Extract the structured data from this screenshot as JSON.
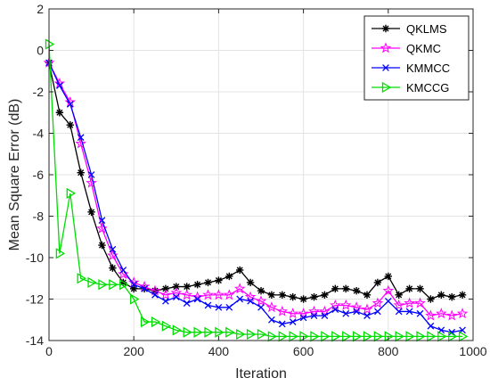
{
  "chart_data": {
    "type": "line",
    "xlabel": "Iteration",
    "ylabel": "Mean Square Error (dB)",
    "xlim": [
      0,
      1000
    ],
    "ylim": [
      -14,
      2
    ],
    "xticks": [
      0,
      200,
      400,
      600,
      800,
      1000
    ],
    "yticks": [
      2,
      0,
      -2,
      -4,
      -6,
      -8,
      -10,
      -12,
      -14
    ],
    "grid": true,
    "legend_position": "top-right",
    "series": [
      {
        "name": "QKLMS",
        "color": "#000000",
        "marker": "asterisk",
        "x": [
          0,
          25,
          50,
          75,
          100,
          125,
          150,
          175,
          200,
          225,
          250,
          275,
          300,
          325,
          350,
          375,
          400,
          425,
          450,
          475,
          500,
          525,
          550,
          575,
          600,
          625,
          650,
          675,
          700,
          725,
          750,
          775,
          800,
          825,
          850,
          875,
          900,
          925,
          950,
          975
        ],
        "y": [
          -0.6,
          -3.0,
          -3.6,
          -5.9,
          -7.8,
          -9.4,
          -10.5,
          -11.2,
          -11.5,
          -11.5,
          -11.6,
          -11.5,
          -11.4,
          -11.4,
          -11.3,
          -11.2,
          -11.1,
          -10.9,
          -10.6,
          -11.2,
          -11.6,
          -11.8,
          -11.8,
          -11.9,
          -12.0,
          -11.9,
          -11.8,
          -11.5,
          -11.5,
          -11.6,
          -11.8,
          -11.2,
          -10.9,
          -11.8,
          -11.5,
          -11.5,
          -12.0,
          -11.8,
          -11.9,
          -11.8
        ]
      },
      {
        "name": "QKMC",
        "color": "#ff00ff",
        "marker": "pentagram",
        "x": [
          0,
          25,
          50,
          75,
          100,
          125,
          150,
          175,
          200,
          225,
          250,
          275,
          300,
          325,
          350,
          375,
          400,
          425,
          450,
          475,
          500,
          525,
          550,
          575,
          600,
          625,
          650,
          675,
          700,
          725,
          750,
          775,
          800,
          825,
          850,
          875,
          900,
          925,
          950,
          975
        ],
        "y": [
          -0.6,
          -1.6,
          -2.5,
          -4.5,
          -6.4,
          -8.6,
          -9.9,
          -10.8,
          -11.2,
          -11.4,
          -11.6,
          -11.8,
          -11.7,
          -11.8,
          -11.9,
          -11.8,
          -11.8,
          -11.8,
          -11.5,
          -11.9,
          -12.1,
          -12.4,
          -12.6,
          -12.7,
          -12.7,
          -12.6,
          -12.6,
          -12.3,
          -12.3,
          -12.4,
          -12.5,
          -12.2,
          -11.6,
          -12.3,
          -12.2,
          -12.2,
          -12.8,
          -12.7,
          -12.8,
          -12.7
        ]
      },
      {
        "name": "KMMCC",
        "color": "#0000ff",
        "marker": "x",
        "x": [
          0,
          25,
          50,
          75,
          100,
          125,
          150,
          175,
          200,
          225,
          250,
          275,
          300,
          325,
          350,
          375,
          400,
          425,
          450,
          475,
          500,
          525,
          550,
          575,
          600,
          625,
          650,
          675,
          700,
          725,
          750,
          775,
          800,
          825,
          850,
          875,
          900,
          925,
          950,
          975
        ],
        "y": [
          -0.6,
          -1.7,
          -2.6,
          -4.2,
          -6.0,
          -8.2,
          -9.6,
          -10.6,
          -11.3,
          -11.5,
          -11.8,
          -12.1,
          -11.9,
          -12.2,
          -12.0,
          -12.3,
          -12.4,
          -12.4,
          -12.0,
          -12.1,
          -12.4,
          -13.0,
          -13.2,
          -13.1,
          -12.9,
          -12.8,
          -12.8,
          -12.5,
          -12.7,
          -12.6,
          -12.8,
          -12.6,
          -12.1,
          -12.6,
          -12.6,
          -12.7,
          -13.3,
          -13.5,
          -13.6,
          -13.5
        ]
      },
      {
        "name": "KMCCG",
        "color": "#00dd00",
        "marker": "triangle-right",
        "x": [
          0,
          25,
          50,
          75,
          100,
          125,
          150,
          175,
          200,
          225,
          250,
          275,
          300,
          325,
          350,
          375,
          400,
          425,
          450,
          475,
          500,
          525,
          550,
          575,
          600,
          625,
          650,
          675,
          700,
          725,
          750,
          775,
          800,
          825,
          850,
          875,
          900,
          925,
          950,
          975
        ],
        "y": [
          0.3,
          -9.8,
          -6.9,
          -11.0,
          -11.2,
          -11.3,
          -11.3,
          -11.3,
          -12.0,
          -13.1,
          -13.1,
          -13.3,
          -13.5,
          -13.6,
          -13.6,
          -13.6,
          -13.6,
          -13.6,
          -13.7,
          -13.7,
          -13.7,
          -13.8,
          -13.8,
          -13.8,
          -13.8,
          -13.8,
          -13.8,
          -13.8,
          -13.8,
          -13.8,
          -13.8,
          -13.8,
          -13.8,
          -13.8,
          -13.8,
          -13.8,
          -13.8,
          -13.8,
          -13.8,
          -13.8
        ]
      }
    ]
  }
}
